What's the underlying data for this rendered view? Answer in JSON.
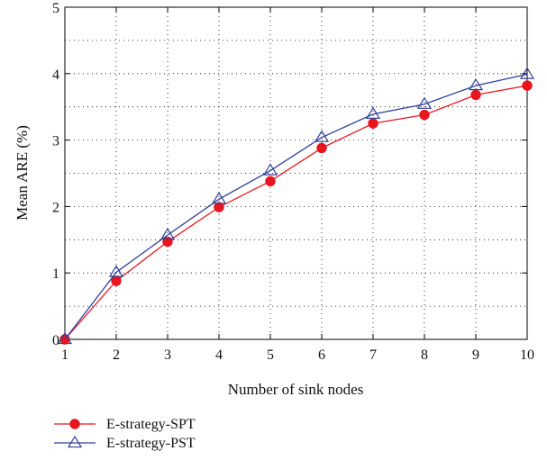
{
  "chart_data": {
    "type": "line",
    "title": "",
    "xlabel": "Number of sink nodes",
    "ylabel": "Mean ARE (%)",
    "x": [
      1,
      2,
      3,
      4,
      5,
      6,
      7,
      8,
      9,
      10
    ],
    "xticks": [
      "1",
      "2",
      "3",
      "4",
      "5",
      "6",
      "7",
      "8",
      "9",
      "10"
    ],
    "yticks": [
      "0",
      "1",
      "2",
      "3",
      "4",
      "5"
    ],
    "xlim": [
      1,
      10
    ],
    "ylim": [
      0,
      5
    ],
    "grid": true,
    "legend_position": "bottom-left",
    "series": [
      {
        "name": "E-strategy-SPT",
        "color": "#e8141e",
        "marker": "filled-circle",
        "values": [
          0,
          0.88,
          1.47,
          1.99,
          2.38,
          2.88,
          3.25,
          3.38,
          3.68,
          3.82
        ]
      },
      {
        "name": "E-strategy-PST",
        "color": "#2f3f9a",
        "marker": "open-triangle",
        "values": [
          0,
          1.01,
          1.57,
          2.11,
          2.54,
          3.04,
          3.39,
          3.54,
          3.82,
          3.99
        ]
      }
    ]
  }
}
